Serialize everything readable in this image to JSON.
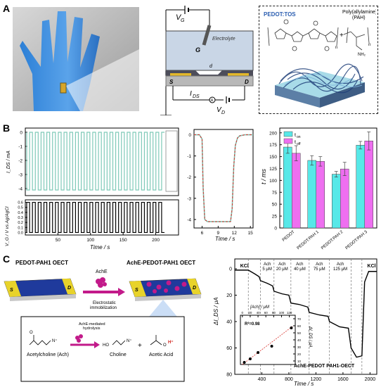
{
  "panels": {
    "a": "A",
    "b": "B",
    "c": "C"
  },
  "panel_a": {
    "vg": "V",
    "vg_sub": "G",
    "electrolyte": "Electrolyte",
    "gate": "G",
    "d_label": "d",
    "source": "S",
    "drain": "D",
    "ids": "I",
    "ids_sub": "DS",
    "vd": "V",
    "vd_sub": "D",
    "ammeter": "A",
    "pedot_tos": "PEDOT:TOS",
    "pah": "Poly(allylamine)\n(PAH)",
    "plus": "+",
    "n": "n",
    "nh2": "NH₂"
  },
  "panel_b": {
    "plot1": {
      "ylabel": "I_DS / mA",
      "yticks": [
        "-4",
        "-3",
        "-2",
        "-1",
        "0"
      ],
      "ylim": [
        -4.5,
        0.3
      ]
    },
    "plot2": {
      "ylabel": "V_G / V vs Ag/AgCl",
      "yticks": [
        "0.6",
        "0.5",
        "0.4",
        "0.3",
        "0.2",
        "0.1",
        "0.0"
      ],
      "ylim": [
        -0.05,
        0.65
      ],
      "xlabel": "Time / s",
      "xticks": [
        "50",
        "100",
        "150",
        "200"
      ],
      "xlim": [
        0,
        235
      ]
    },
    "zoom": {
      "xlabel": "Time / s",
      "xticks": [
        "6",
        "9",
        "12",
        "15"
      ],
      "yticks": [
        "-4",
        "-3",
        "-2",
        "-1",
        "0"
      ],
      "xlim": [
        4.5,
        15.5
      ],
      "ylim": [
        -4.4,
        0.25
      ]
    },
    "bar": {
      "ylabel": "t / ms",
      "yticks": [
        "0",
        "25",
        "50",
        "75",
        "100",
        "125",
        "150",
        "175",
        "200"
      ],
      "ylim": [
        0,
        210
      ],
      "legend_on": "t",
      "legend_on_sub": "on",
      "legend_off": "t",
      "legend_off_sub": "off"
    }
  },
  "chart_data": [
    {
      "type": "line",
      "description_key": "drain current switching",
      "ylabel": "I_DS / mA",
      "series": [
        {
          "name": "",
          "x": [
            0,
            235
          ],
          "values": [
            -4.1,
            0
          ]
        }
      ],
      "color": "#7ec9b7",
      "ylim": [
        -4.5,
        0.3
      ]
    },
    {
      "type": "line",
      "ylabel": "V_G / V vs Ag/AgCl",
      "xlabel": "Time / s",
      "series": [
        {
          "name": "",
          "x": [
            0,
            235
          ],
          "values": [
            0.0,
            0.6
          ]
        }
      ],
      "ylim": [
        -0.05,
        0.65
      ],
      "xlim": [
        0,
        235
      ]
    },
    {
      "type": "line",
      "xlabel": "Time / s",
      "x": [
        4.5,
        5.5,
        6.0,
        6.2,
        6.5,
        7.0,
        8.0,
        9.0,
        10.0,
        11.0,
        11.3,
        11.6,
        11.9,
        12.2,
        12.6,
        13.0,
        14.0,
        15.5
      ],
      "series": [
        {
          "name": "",
          "values": [
            0.0,
            0.0,
            -0.2,
            -2.5,
            -4.0,
            -4.1,
            -4.1,
            -4.1,
            -4.1,
            -4.1,
            -4.1,
            -3.5,
            -1.5,
            -0.5,
            -0.15,
            -0.05,
            0.0,
            0.0
          ]
        }
      ],
      "ylim": [
        -4.4,
        0.25
      ],
      "xlim": [
        4.5,
        15.5
      ]
    },
    {
      "type": "bar",
      "categories": [
        "PEDOT",
        "PEDOT:PAH 1",
        "PEDOT:PAH 2",
        "PEDOT:PAH 3"
      ],
      "series": [
        {
          "name": "t_on",
          "values": [
            170,
            142,
            113,
            174
          ],
          "err": [
            13,
            10,
            6,
            8
          ]
        },
        {
          "name": "t_off",
          "values": [
            157,
            140,
            124,
            183
          ],
          "err": [
            16,
            10,
            14,
            19
          ]
        }
      ],
      "colors": [
        "#57e8e8",
        "#ee6ff0"
      ],
      "ylabel": "t / ms",
      "ylim": [
        0,
        210
      ]
    },
    {
      "type": "line",
      "xlabel": "Time / s",
      "ylabel": "ΔI_DS / μA",
      "x": [
        0,
        80,
        200,
        300,
        360,
        380,
        480,
        560,
        580,
        700,
        800,
        830,
        950,
        1080,
        1100,
        1250,
        1380,
        1400,
        1550,
        1680,
        1720,
        1800,
        1880,
        1920,
        1980,
        2100
      ],
      "series": [
        {
          "name": "",
          "values": [
            1,
            1,
            1,
            4,
            6,
            9,
            11,
            13,
            17,
            19,
            20,
            26,
            27,
            29,
            33,
            35,
            36,
            40,
            44,
            45,
            60,
            67,
            66,
            10,
            2,
            2
          ]
        }
      ],
      "ylim": [
        0,
        80
      ],
      "xlim": [
        0,
        2100
      ]
    },
    {
      "type": "scatter",
      "xlabel": "[Ach] / μM",
      "ylabel": "ΔI_DS / μA",
      "x": [
        5,
        20,
        40,
        75,
        125
      ],
      "values": [
        8,
        13,
        22,
        31,
        57
      ],
      "r2": "R²=0.98"
    }
  ],
  "panel_c": {
    "device_left": "PEDOT-PAH1 OECT",
    "device_right": "AchE-PEDOT-PAH1 OECT",
    "enzyme": "AchE",
    "immob": "Electrostatic\nimmobilization",
    "s": "S",
    "d": "D",
    "reaction_top": "AchE-mediated\nhydrolysis",
    "acetylcholine": "Acetylcholine (Ach)",
    "choline": "Choline",
    "acetic": "Acetic Acid",
    "plus": "+",
    "h_plus": "H⁺",
    "ho": "HO",
    "n_plus": "N⁺",
    "o_minus": "O",
    "kcl": "KCl",
    "concs": [
      "Ach\n5 μM",
      "Ach\n20 μM",
      "Ach\n40 μM",
      "Ach\n75 μM",
      "Ach\n125 μM"
    ],
    "ylabel": "ΔI_DS / μA",
    "yticks": [
      "0",
      "20",
      "40",
      "60",
      "80"
    ],
    "xticks": [
      "400",
      "800",
      "1200",
      "1600",
      "2000"
    ],
    "xlabel": "Time / s",
    "inset_xlabel": "[Ach] / μM",
    "inset_xticks": [
      "0",
      "20",
      "40",
      "60",
      "80",
      "100",
      "120"
    ],
    "inset_yticks": [
      "10",
      "20",
      "30",
      "40",
      "50",
      "60",
      "70"
    ],
    "inset_ylabel": "ΔI_DS / μA",
    "r2": "R²=0.98",
    "device_name": "AchE-PEDOT PAH1-OECT"
  }
}
